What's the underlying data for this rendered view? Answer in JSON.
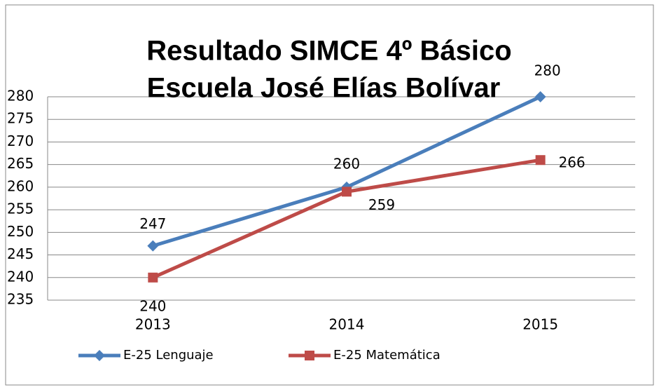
{
  "chart_data": {
    "type": "line",
    "title": [
      "Resultado SIMCE 4º Básico",
      "Escuela José Elías Bolívar"
    ],
    "categories": [
      "2013",
      "2014",
      "2015"
    ],
    "series": [
      {
        "name": "E-25 Lenguaje",
        "color": "#4a7ebb",
        "marker": "diamond",
        "values": [
          247,
          260,
          280
        ]
      },
      {
        "name": "E-25 Matemática",
        "color": "#be4b48",
        "marker": "square",
        "values": [
          240,
          259,
          266
        ]
      }
    ],
    "ylim": [
      235,
      280
    ],
    "yticks": [
      235,
      240,
      245,
      250,
      255,
      260,
      265,
      270,
      275,
      280
    ],
    "grid": true,
    "legend": "bottom"
  }
}
